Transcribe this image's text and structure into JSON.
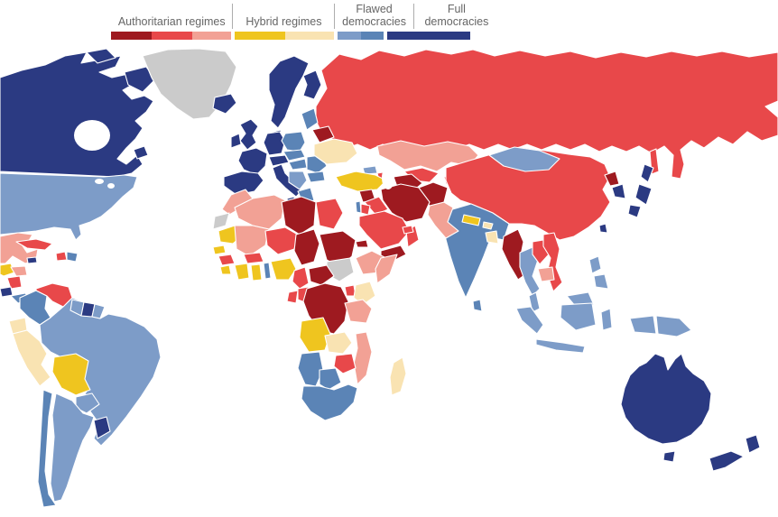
{
  "legend": {
    "text_color": "#666666",
    "categories": [
      {
        "key": "authoritarian",
        "label": "Authoritarian regimes",
        "colors": [
          "#9e1a20",
          "#e8484a",
          "#f2a195"
        ],
        "widths": [
          45,
          45,
          43
        ],
        "label_width": 133
      },
      {
        "key": "hybrid",
        "label": "Hybrid regimes",
        "colors": [
          "#efc51f",
          "#f9e3b2"
        ],
        "widths": [
          56,
          54
        ],
        "label_width": 110
      },
      {
        "key": "flawed",
        "label": "Flawed democracies",
        "colors": [
          "#7d9cc8",
          "#5b84b6"
        ],
        "widths": [
          26,
          25
        ],
        "label_width": 84
      },
      {
        "key": "full",
        "label": "Full democracies",
        "colors": [
          "#2b3a82"
        ],
        "widths": [
          92
        ],
        "label_width": 92
      }
    ]
  },
  "chart_data": {
    "type": "choropleth_map",
    "subject": "World map coloured by democracy category (authoritarian / hybrid / flawed democracy / full democracy)",
    "categories": [
      "Authoritarian regimes",
      "Hybrid regimes",
      "Flawed democracies",
      "Full democracies"
    ],
    "palette": {
      "auth3": "#9e1a20",
      "auth2": "#e8484a",
      "auth1": "#f2a195",
      "hyb2": "#efc51f",
      "hyb1": "#f9e3b2",
      "flaw1": "#7d9cc8",
      "flaw2": "#5b84b6",
      "full": "#2b3a82",
      "nodata": "#cbcbcb"
    },
    "palette_meaning": {
      "auth3": "authoritarian (most severe shade)",
      "auth2": "authoritarian (mid shade)",
      "auth1": "authoritarian (light shade)",
      "hyb2": "hybrid regime (strong shade)",
      "hyb1": "hybrid regime (light shade)",
      "flaw1": "flawed democracy (light shade)",
      "flaw2": "flawed democracy (dark shade)",
      "full": "full democracy",
      "nodata": "no data"
    },
    "regions": {
      "canada": "full",
      "arctic-islands": "full",
      "baffin": "full",
      "newfoundland": "full",
      "greenland": "nodata",
      "iceland": "full",
      "usa": "flaw1",
      "mexico": "auth1",
      "guatemala": "hyb2",
      "honduras": "auth1",
      "nicaragua": "auth2",
      "costarica": "full",
      "panama": "flaw2",
      "cuba": "auth2",
      "jamaica": "full",
      "haiti": "auth2",
      "dominicanrep": "flaw2",
      "colombia": "flaw2",
      "venezuela": "auth2",
      "guyana": "flaw1",
      "suriname": "full",
      "frguiana": "flaw1",
      "ecuador": "hyb1",
      "peru": "hyb1",
      "brazil": "flaw1",
      "bolivia": "hyb2",
      "paraguay": "flaw1",
      "chile": "flaw2",
      "argentina": "flaw1",
      "uruguay": "full",
      "uk": "full",
      "ireland": "full",
      "scandinavia": "full",
      "finland": "full",
      "denmark": "full",
      "iberia": "full",
      "france": "full",
      "germany": "full",
      "italy": "full",
      "sicily": "full",
      "alpine": "full",
      "poland": "flaw2",
      "czechoslovakia": "flaw2",
      "hungary": "flaw2",
      "romania": "flaw2",
      "bulgaria": "flaw2",
      "balkans": "flaw1",
      "greece": "flaw2",
      "baltics": "flaw2",
      "belarus": "auth3",
      "ukraine": "hyb1",
      "russia": "auth2",
      "sakhalin": "auth2",
      "kazakhstan": "auth1",
      "uzbekistan": "auth2",
      "turkmenistan": "auth3",
      "kyrgyzstan": "auth1",
      "tajikistan": "auth2",
      "georgia": "flaw1",
      "azerbaijan": "auth2",
      "turkey": "hyb2",
      "syria": "auth3",
      "iraq": "auth2",
      "israel": "flaw2",
      "jordan": "auth2",
      "saudiarabia": "auth2",
      "yemen": "auth3",
      "oman": "auth2",
      "uae": "auth2",
      "iran": "auth3",
      "afghanistan": "auth3",
      "pakistan": "auth1",
      "india": "flaw2",
      "nepal": "hyb2",
      "bhutan": "hyb1",
      "bangladesh": "hyb1",
      "srilanka": "flaw2",
      "china": "auth2",
      "mongolia": "flaw1",
      "northkorea": "auth3",
      "southkorea": "full",
      "japan": "full",
      "taiwan": "full",
      "myanmar": "auth3",
      "thailand": "flaw1",
      "laos": "auth2",
      "vietnam": "auth2",
      "cambodia": "auth1",
      "malaysia": "flaw1",
      "indonesia": "flaw1",
      "philippines": "flaw1",
      "png": "flaw1",
      "australia": "full",
      "tasmania": "full",
      "newzealand": "full",
      "morocco": "auth1",
      "wsahara": "nodata",
      "algeria": "auth1",
      "libya": "auth3",
      "egypt": "auth2",
      "mauritania": "hyb2",
      "mali": "auth1",
      "niger": "auth2",
      "chad": "auth3",
      "sudan": "auth3",
      "southsudan": "nodata",
      "eritrea": "auth3",
      "ethiopia": "auth1",
      "somalia": "auth1",
      "senegal": "hyb2",
      "guinea": "auth2",
      "liberia": "hyb2",
      "ivorycoast": "hyb2",
      "burkina": "auth2",
      "ghana": "hyb2",
      "benin": "flaw2",
      "nigeria": "hyb2",
      "cameroon": "auth2",
      "car": "auth3",
      "gabon": "auth2",
      "congo": "auth2",
      "drc": "auth3",
      "uganda": "auth2",
      "kenya": "hyb1",
      "tanzania": "auth1",
      "angola": "hyb2",
      "zambia": "hyb1",
      "mozambique": "auth1",
      "zimbabwe": "auth2",
      "namibia": "flaw2",
      "botswana": "flaw2",
      "southafrica": "flaw2",
      "madagascar": "hyb1"
    }
  }
}
